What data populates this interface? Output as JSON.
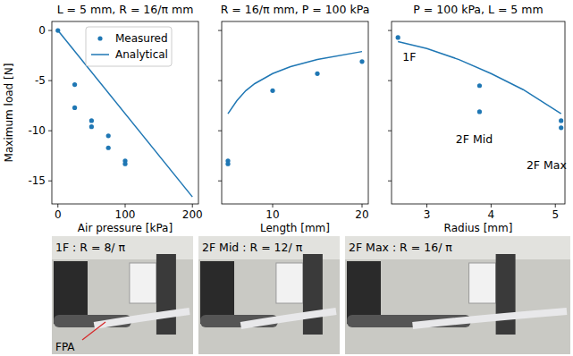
{
  "chart_data": [
    {
      "type": "scatter",
      "title": "L = 5 mm, R = 16/π mm",
      "xlabel": "Air pressure [kPa]",
      "ylabel": "Maximum load [N]",
      "xlim": [
        -9,
        209
      ],
      "xticks": [
        0,
        100,
        200
      ],
      "ylim": [
        -17.3,
        0.9
      ],
      "yticks": [
        0,
        -5,
        -10,
        -15
      ],
      "tick_labels": true,
      "legend": "upper right",
      "series": [
        {
          "name": "Measured",
          "type": "scatter",
          "marker": "circle",
          "color": "#1f77b4",
          "x": [
            0,
            25,
            25,
            50,
            50,
            75,
            75,
            100,
            100
          ],
          "values": [
            0,
            -5.4,
            -7.7,
            -9.0,
            -9.6,
            -10.5,
            -11.7,
            -13.0,
            -13.3
          ]
        },
        {
          "name": "Analytical",
          "type": "line",
          "line_style": "solid",
          "color": "#1f77b4",
          "x": [
            0,
            200
          ],
          "values": [
            0,
            -16.6
          ]
        }
      ]
    },
    {
      "type": "scatter",
      "title": "R = 16/π mm, P = 100 kPa",
      "xlabel": "Length [mm]",
      "xlim": [
        4.3,
        20.7
      ],
      "xticks": [
        10,
        20
      ],
      "ylim": [
        -17.3,
        0.9
      ],
      "yticks": [
        0,
        -5,
        -10,
        -15
      ],
      "tick_labels": "x",
      "series": [
        {
          "type": "scatter",
          "marker": "circle",
          "color": "#1f77b4",
          "x": [
            5,
            5,
            10,
            15,
            20
          ],
          "values": [
            -13.0,
            -13.3,
            -6.0,
            -4.3,
            -3.1
          ]
        },
        {
          "type": "line",
          "line_style": "solid",
          "color": "#1f77b4",
          "x": [
            5,
            6,
            7,
            8,
            10,
            12,
            15,
            20
          ],
          "values": [
            -8.3,
            -7.0,
            -6.0,
            -5.3,
            -4.3,
            -3.6,
            -2.9,
            -2.1
          ]
        }
      ]
    },
    {
      "type": "scatter",
      "title": "P = 100 kPa, L = 5 mm",
      "xlabel": "Radius [mm]",
      "xlim": [
        2.45,
        5.15
      ],
      "xticks": [
        3,
        4,
        5
      ],
      "ylim": [
        -17.3,
        0.9
      ],
      "yticks": [
        0,
        -5,
        -10,
        -15
      ],
      "tick_labels": "x",
      "series": [
        {
          "type": "scatter",
          "marker": "circle",
          "color": "#1f77b4",
          "x": [
            2.55,
            3.82,
            3.82,
            5.09,
            5.09
          ],
          "values": [
            -0.7,
            -5.5,
            -8.1,
            -9.0,
            -9.7
          ]
        },
        {
          "type": "line",
          "line_style": "solid",
          "color": "#1f77b4",
          "x": [
            2.55,
            3.0,
            3.5,
            4.0,
            4.5,
            5.09
          ],
          "values": [
            -1.1,
            -1.8,
            -2.9,
            -4.3,
            -5.9,
            -8.3
          ]
        }
      ],
      "annotations": [
        {
          "text": "1F",
          "x": 2.62,
          "y": -3.0
        },
        {
          "text": "2F Mid",
          "x": 3.45,
          "y": -11.2
        },
        {
          "text": "2F Max",
          "x": 4.55,
          "y": -13.8
        }
      ]
    }
  ],
  "photos": [
    {
      "label": "1F : R = 8/ π"
    },
    {
      "label": "2F Mid : R = 12/ π"
    },
    {
      "label": "2F Max : R = 16/ π"
    }
  ],
  "photo_annotation": "FPA"
}
